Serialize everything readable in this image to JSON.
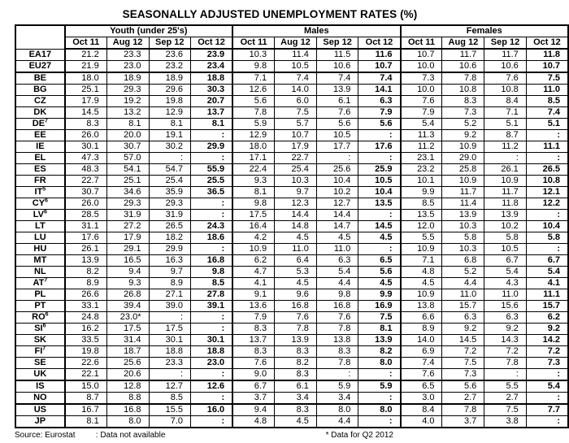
{
  "title": "SEASONALLY ADJUSTED UNEMPLOYMENT RATES (%)",
  "groups": [
    "Youth (under 25's)",
    "Males",
    "Females"
  ],
  "months": [
    "Oct 11",
    "Aug 12",
    "Sep 12",
    "Oct 12"
  ],
  "missing_symbol": ":",
  "footer": {
    "source": "Source: Eurostat",
    "not_available": ": Data not available",
    "q2_note": "* Data for Q2 2012"
  },
  "chart_data": {
    "type": "table",
    "title": "SEASONALLY ADJUSTED UNEMPLOYMENT RATES (%)",
    "column_groups": [
      "Youth (under 25's)",
      "Males",
      "Females"
    ],
    "columns_per_group": [
      "Oct 11",
      "Aug 12",
      "Sep 12",
      "Oct 12"
    ]
  },
  "rows": [
    {
      "code": "EA17",
      "sup": "",
      "thick_top": false,
      "youth": [
        "21.2",
        "23.3",
        "23.6",
        "23.9"
      ],
      "males": [
        "10.3",
        "11.4",
        "11.5",
        "11.6"
      ],
      "females": [
        "10.7",
        "11.7",
        "11.7",
        "11.8"
      ]
    },
    {
      "code": "EU27",
      "sup": "",
      "thick_top": false,
      "youth": [
        "21.9",
        "23.0",
        "23.2",
        "23.4"
      ],
      "males": [
        "9.8",
        "10.5",
        "10.6",
        "10.7"
      ],
      "females": [
        "10.0",
        "10.6",
        "10.6",
        "10.7"
      ]
    },
    {
      "code": "BE",
      "sup": "",
      "thick_top": true,
      "youth": [
        "18.0",
        "18.9",
        "18.9",
        "18.8"
      ],
      "males": [
        "7.1",
        "7.4",
        "7.4",
        "7.4"
      ],
      "females": [
        "7.3",
        "7.8",
        "7.6",
        "7.5"
      ]
    },
    {
      "code": "BG",
      "sup": "",
      "thick_top": false,
      "youth": [
        "25.1",
        "29.3",
        "29.6",
        "30.3"
      ],
      "males": [
        "12.6",
        "14.0",
        "13.9",
        "14.1"
      ],
      "females": [
        "10.0",
        "10.8",
        "10.8",
        "11.0"
      ]
    },
    {
      "code": "CZ",
      "sup": "",
      "thick_top": false,
      "youth": [
        "17.9",
        "19.2",
        "19.8",
        "20.7"
      ],
      "males": [
        "5.6",
        "6.0",
        "6.1",
        "6.3"
      ],
      "females": [
        "7.6",
        "8.3",
        "8.4",
        "8.5"
      ]
    },
    {
      "code": "DK",
      "sup": "",
      "thick_top": false,
      "youth": [
        "14.5",
        "13.2",
        "12.9",
        "13.7"
      ],
      "males": [
        "7.8",
        "7.5",
        "7.6",
        "7.9"
      ],
      "females": [
        "7.9",
        "7.3",
        "7.1",
        "7.4"
      ]
    },
    {
      "code": "DE",
      "sup": "7",
      "thick_top": false,
      "youth": [
        "8.3",
        "8.1",
        "8.1",
        "8.1"
      ],
      "males": [
        "5.9",
        "5.7",
        "5.6",
        "5.6"
      ],
      "females": [
        "5.4",
        "5.2",
        "5.1",
        "5.1"
      ]
    },
    {
      "code": "EE",
      "sup": "",
      "thick_top": false,
      "youth": [
        "26.0",
        "20.0",
        "19.1",
        ":"
      ],
      "males": [
        "12.9",
        "10.7",
        "10.5",
        ":"
      ],
      "females": [
        "11.3",
        "9.2",
        "8.7",
        ":"
      ]
    },
    {
      "code": "IE",
      "sup": "",
      "thick_top": false,
      "youth": [
        "30.1",
        "30.7",
        "30.2",
        "29.9"
      ],
      "males": [
        "18.0",
        "17.9",
        "17.7",
        "17.6"
      ],
      "females": [
        "11.2",
        "10.9",
        "11.2",
        "11.1"
      ]
    },
    {
      "code": "EL",
      "sup": "",
      "thick_top": false,
      "youth": [
        "47.3",
        "57.0",
        ":",
        ":"
      ],
      "males": [
        "17.1",
        "22.7",
        ":",
        ":"
      ],
      "females": [
        "23.1",
        "29.0",
        ":",
        ":"
      ]
    },
    {
      "code": "ES",
      "sup": "",
      "thick_top": false,
      "youth": [
        "48.3",
        "54.1",
        "54.7",
        "55.9"
      ],
      "males": [
        "22.4",
        "25.4",
        "25.6",
        "25.9"
      ],
      "females": [
        "23.2",
        "25.8",
        "26.1",
        "26.5"
      ]
    },
    {
      "code": "FR",
      "sup": "",
      "thick_top": false,
      "youth": [
        "22.7",
        "25.1",
        "25.4",
        "25.5"
      ],
      "males": [
        "9.3",
        "10.3",
        "10.4",
        "10.5"
      ],
      "females": [
        "10.1",
        "10.9",
        "10.9",
        "10.8"
      ]
    },
    {
      "code": "IT",
      "sup": "5",
      "thick_top": false,
      "youth": [
        "30.7",
        "34.6",
        "35.9",
        "36.5"
      ],
      "males": [
        "8.1",
        "9.7",
        "10.2",
        "10.4"
      ],
      "females": [
        "9.9",
        "11.7",
        "11.7",
        "12.1"
      ]
    },
    {
      "code": "CY",
      "sup": "6",
      "thick_top": false,
      "youth": [
        "26.0",
        "29.3",
        "29.3",
        ":"
      ],
      "males": [
        "9.8",
        "12.3",
        "12.7",
        "13.5"
      ],
      "females": [
        "8.5",
        "11.4",
        "11.8",
        "12.2"
      ]
    },
    {
      "code": "LV",
      "sup": "6",
      "thick_top": false,
      "youth": [
        "28.5",
        "31.9",
        "31.9",
        ":"
      ],
      "males": [
        "17.5",
        "14.4",
        "14.4",
        ":"
      ],
      "females": [
        "13.5",
        "13.9",
        "13.9",
        ":"
      ]
    },
    {
      "code": "LT",
      "sup": "",
      "thick_top": false,
      "youth": [
        "31.1",
        "27.2",
        "26.5",
        "24.3"
      ],
      "males": [
        "16.4",
        "14.8",
        "14.7",
        "14.5"
      ],
      "females": [
        "12.0",
        "10.3",
        "10.2",
        "10.4"
      ]
    },
    {
      "code": "LU",
      "sup": "",
      "thick_top": false,
      "youth": [
        "17.6",
        "17.9",
        "18.2",
        "18.6"
      ],
      "males": [
        "4.2",
        "4.5",
        "4.5",
        "4.5"
      ],
      "females": [
        "5.5",
        "5.8",
        "5.8",
        "5.8"
      ]
    },
    {
      "code": "HU",
      "sup": "",
      "thick_top": false,
      "youth": [
        "26.1",
        "29.1",
        "29.9",
        ":"
      ],
      "males": [
        "10.9",
        "11.0",
        "11.0",
        ":"
      ],
      "females": [
        "10.9",
        "10.3",
        "10.5",
        ":"
      ]
    },
    {
      "code": "MT",
      "sup": "",
      "thick_top": false,
      "youth": [
        "13.9",
        "16.5",
        "16.3",
        "16.8"
      ],
      "males": [
        "6.2",
        "6.4",
        "6.3",
        "6.5"
      ],
      "females": [
        "7.1",
        "6.8",
        "6.7",
        "6.7"
      ]
    },
    {
      "code": "NL",
      "sup": "",
      "thick_top": false,
      "youth": [
        "8.2",
        "9.4",
        "9.7",
        "9.8"
      ],
      "males": [
        "4.7",
        "5.3",
        "5.4",
        "5.6"
      ],
      "females": [
        "4.8",
        "5.2",
        "5.4",
        "5.4"
      ]
    },
    {
      "code": "AT",
      "sup": "7",
      "thick_top": false,
      "youth": [
        "8.9",
        "9.3",
        "8.9",
        "8.5"
      ],
      "males": [
        "4.1",
        "4.5",
        "4.4",
        "4.5"
      ],
      "females": [
        "4.5",
        "4.4",
        "4.3",
        "4.1"
      ]
    },
    {
      "code": "PL",
      "sup": "",
      "thick_top": false,
      "youth": [
        "26.6",
        "26.8",
        "27.1",
        "27.8"
      ],
      "males": [
        "9.1",
        "9.6",
        "9.8",
        "9.9"
      ],
      "females": [
        "10.9",
        "11.0",
        "11.0",
        "11.1"
      ]
    },
    {
      "code": "PT",
      "sup": "",
      "thick_top": false,
      "youth": [
        "33.1",
        "39.4",
        "39.0",
        "39.1"
      ],
      "males": [
        "13.6",
        "16.8",
        "16.8",
        "16.9"
      ],
      "females": [
        "13.8",
        "15.7",
        "15.6",
        "15.7"
      ]
    },
    {
      "code": "RO",
      "sup": "6",
      "thick_top": false,
      "youth": [
        "24.8",
        "23.0*",
        ":",
        ":"
      ],
      "males": [
        "7.9",
        "7.6",
        "7.6",
        "7.5"
      ],
      "females": [
        "6.6",
        "6.3",
        "6.3",
        "6.2"
      ]
    },
    {
      "code": "SI",
      "sup": "6",
      "thick_top": false,
      "youth": [
        "16.2",
        "17.5",
        "17.5",
        ":"
      ],
      "males": [
        "8.3",
        "7.8",
        "7.8",
        "8.1"
      ],
      "females": [
        "8.9",
        "9.2",
        "9.2",
        "9.2"
      ]
    },
    {
      "code": "SK",
      "sup": "",
      "thick_top": false,
      "youth": [
        "33.5",
        "31.4",
        "30.1",
        "30.1"
      ],
      "males": [
        "13.7",
        "13.9",
        "13.8",
        "13.9"
      ],
      "females": [
        "14.0",
        "14.5",
        "14.3",
        "14.2"
      ]
    },
    {
      "code": "FI",
      "sup": "7",
      "thick_top": false,
      "youth": [
        "19.8",
        "18.7",
        "18.8",
        "18.8"
      ],
      "males": [
        "8.3",
        "8.3",
        "8.3",
        "8.2"
      ],
      "females": [
        "6.9",
        "7.2",
        "7.2",
        "7.2"
      ]
    },
    {
      "code": "SE",
      "sup": "",
      "thick_top": false,
      "youth": [
        "22.6",
        "25.6",
        "23.3",
        "23.0"
      ],
      "males": [
        "7.6",
        "8.2",
        "7.8",
        "8.0"
      ],
      "females": [
        "7.4",
        "7.5",
        "7.8",
        "7.3"
      ]
    },
    {
      "code": "UK",
      "sup": "",
      "thick_top": false,
      "youth": [
        "22.1",
        "20.6",
        ":",
        ":"
      ],
      "males": [
        "9.0",
        "8.3",
        ":",
        ":"
      ],
      "females": [
        "7.6",
        "7.3",
        ":",
        ":"
      ]
    },
    {
      "code": "IS",
      "sup": "",
      "thick_top": true,
      "youth": [
        "15.0",
        "12.8",
        "12.7",
        "12.6"
      ],
      "males": [
        "6.7",
        "6.1",
        "5.9",
        "5.9"
      ],
      "females": [
        "6.5",
        "5.6",
        "5.5",
        "5.4"
      ]
    },
    {
      "code": "NO",
      "sup": "",
      "thick_top": false,
      "youth": [
        "8.7",
        "8.8",
        "8.5",
        ":"
      ],
      "males": [
        "3.7",
        "3.4",
        "3.4",
        ":"
      ],
      "females": [
        "3.0",
        "2.7",
        "2.7",
        ":"
      ]
    },
    {
      "code": "US",
      "sup": "",
      "thick_top": true,
      "youth": [
        "16.7",
        "16.8",
        "15.5",
        "16.0"
      ],
      "males": [
        "9.4",
        "8.3",
        "8.0",
        "8.0"
      ],
      "females": [
        "8.4",
        "7.8",
        "7.5",
        "7.7"
      ]
    },
    {
      "code": "JP",
      "sup": "",
      "thick_top": false,
      "youth": [
        "8.1",
        "8.0",
        "7.0",
        ":"
      ],
      "males": [
        "4.8",
        "4.5",
        "4.4",
        ":"
      ],
      "females": [
        "4.0",
        "3.7",
        "3.8",
        ":"
      ]
    }
  ]
}
